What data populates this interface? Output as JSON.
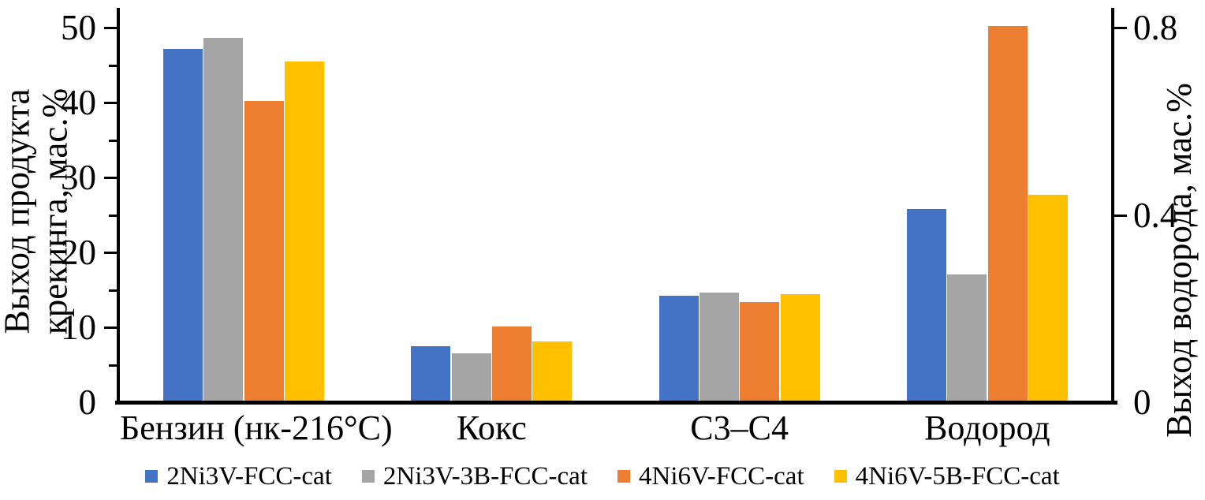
{
  "chart_data": {
    "type": "bar",
    "title": "",
    "categories": [
      "Бензин (нк-216°C)",
      "Кокс",
      "C3–C4",
      "Водород"
    ],
    "series": [
      {
        "name": "2Ni3V-FCC-cat",
        "color": "#4472C4",
        "values": [
          47.0,
          7.3,
          14.0,
          0.41
        ]
      },
      {
        "name": "2Ni3V-3B-FCC-cat",
        "color": "#A5A5A5",
        "values": [
          48.4,
          6.3,
          14.4,
          0.27
        ]
      },
      {
        "name": "4Ni6V-FCC-cat",
        "color": "#ED7D31",
        "values": [
          40.0,
          9.9,
          13.2,
          0.8
        ]
      },
      {
        "name": "4Ni6V-5B-FCC-cat",
        "color": "#FFC000",
        "values": [
          45.3,
          7.9,
          14.2,
          0.44
        ]
      }
    ],
    "left_axis": {
      "title_line1": "Выход продукта",
      "title_line2": "крекинга, мас.%",
      "min": 0,
      "max": 50,
      "major_ticks": [
        0,
        10,
        20,
        30,
        40,
        50
      ],
      "minor_ticks": [
        5,
        15,
        25,
        35,
        45
      ]
    },
    "right_axis": {
      "title": "Выход водорода, мас.%",
      "min": 0,
      "max": 0.8,
      "ticks": [
        0,
        0.4,
        0.8
      ],
      "tick_labels": [
        "0",
        "0.4",
        "0.8"
      ]
    },
    "right_axis_category": "Водород",
    "legend_position": "bottom",
    "grid": false,
    "axis_color": "#000000"
  }
}
